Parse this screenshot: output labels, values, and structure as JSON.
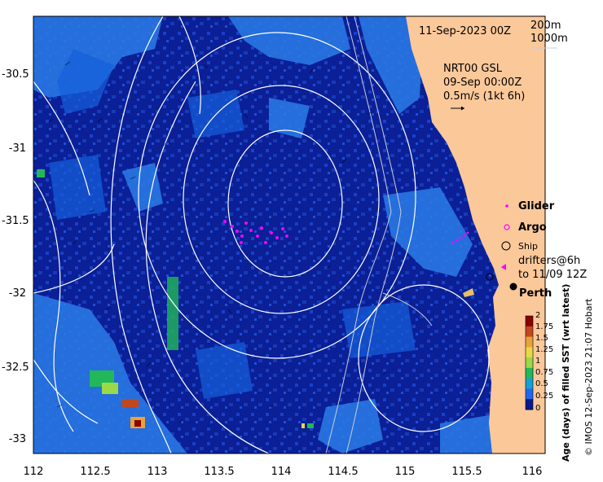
{
  "map": {
    "date_label": "11-Sep-2023 00Z",
    "depth_contours": [
      "200m",
      "1000m"
    ],
    "current_source": "NRT00 GSL",
    "current_date": "09-Sep 00:00Z",
    "current_scale": "0.5m/s (1kt 6h)"
  },
  "legend": {
    "glider": "Glider",
    "argo": "Argo",
    "ship": "Ship",
    "drifters_line1": "drifters@6h",
    "drifters_line2": "to 11/09 12Z",
    "city": "Perth"
  },
  "axes": {
    "y_ticks": [
      "-30.5",
      "-31",
      "-31.5",
      "-32",
      "-32.5",
      "-33"
    ],
    "x_ticks": [
      "112",
      "112.5",
      "113",
      "113.5",
      "114",
      "114.5",
      "115",
      "115.5",
      "116"
    ]
  },
  "colorbar": {
    "title": "Age (days) of filled SST (wrt latest)",
    "ticks": [
      "2",
      "1.75",
      "1.5",
      "1.25",
      "1",
      "0.75",
      "0.5",
      "0.25",
      "0"
    ],
    "colors": [
      "#8b0000",
      "#c4461f",
      "#e8a23b",
      "#e6d84a",
      "#9bd84a",
      "#22b85a",
      "#16a0d8",
      "#2266ee",
      "#0a1a8c"
    ]
  },
  "credit": "© IMOS 12-Sep-2023 21:07 Hobart",
  "colors": {
    "ocean_deep": "#091a8c",
    "ocean_mid": "#1a3fcf",
    "ocean_light": "#2c8ff0",
    "land": "#fbc89a",
    "glider": "#ff00ff"
  }
}
